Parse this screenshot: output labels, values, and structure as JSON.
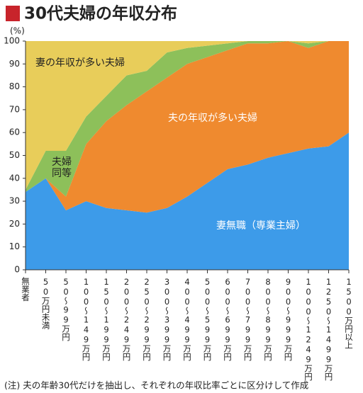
{
  "chart_data": {
    "type": "stacked_area",
    "title": "30代夫婦の年収分布",
    "y_unit": "(%)",
    "note": "(注) 夫の年齢30代だけを抽出し、それぞれの年収比率ごとに区分けして作成",
    "categories": [
      "無業者",
      "50万円未満",
      "50～99万円",
      "100～149万円",
      "150～199万円",
      "200～249万円",
      "250～299万円",
      "300～399万円",
      "400～499万円",
      "500～599万円",
      "600～699万円",
      "700～799万円",
      "800～899万円",
      "900～999万円",
      "1000～1249万円",
      "1250～1499万円",
      "1500万円以上"
    ],
    "series": [
      {
        "name": "妻無職（専業主婦）",
        "color": "#3d9be9",
        "values": [
          34,
          40,
          26,
          30,
          27,
          26,
          25,
          27,
          32,
          38,
          44,
          46,
          49,
          51,
          53,
          54,
          60
        ]
      },
      {
        "name": "夫の年収が多い夫婦",
        "color": "#ef8a2f",
        "values": [
          0,
          0,
          6,
          25,
          38,
          46,
          53,
          57,
          58,
          55,
          52,
          53,
          50,
          49,
          44,
          46,
          40
        ]
      },
      {
        "name": "夫婦同等",
        "color": "#8dc05a",
        "values": [
          1,
          12,
          20,
          12,
          11,
          13,
          9,
          11,
          7,
          5,
          3,
          1,
          1,
          0,
          2,
          0,
          0
        ]
      },
      {
        "name": "妻の年収が多い夫婦",
        "color": "#e8cd5a",
        "values": [
          65,
          48,
          48,
          33,
          24,
          15,
          13,
          5,
          3,
          2,
          1,
          0,
          0,
          0,
          1,
          0,
          0
        ]
      }
    ],
    "ylim": [
      0,
      100
    ],
    "yticks": [
      0,
      10,
      20,
      30,
      40,
      50,
      60,
      70,
      80,
      90,
      100
    ]
  }
}
